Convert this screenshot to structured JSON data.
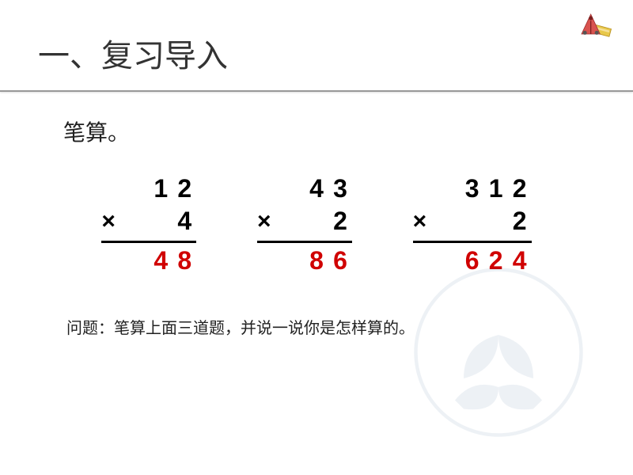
{
  "title": "一、复习导入",
  "subtitle": "笔算。",
  "op_sign": "×",
  "problems": [
    {
      "top": [
        "1",
        "2"
      ],
      "bottom": [
        "4"
      ],
      "result": [
        "4",
        "8"
      ],
      "sizeClass": "p1"
    },
    {
      "top": [
        "4",
        "3"
      ],
      "bottom": [
        "2"
      ],
      "result": [
        "8",
        "6"
      ],
      "sizeClass": "p2"
    },
    {
      "top": [
        "3",
        "1",
        "2"
      ],
      "bottom": [
        "2"
      ],
      "result": [
        "6",
        "2",
        "4"
      ],
      "sizeClass": "p3"
    }
  ],
  "question": "问题：笔算上面三道题，并说一说你是怎样算的。",
  "colors": {
    "result": "#d00000",
    "numeric": "#000000",
    "title": "#333333",
    "underline": "#999999",
    "background": "#ffffff"
  }
}
